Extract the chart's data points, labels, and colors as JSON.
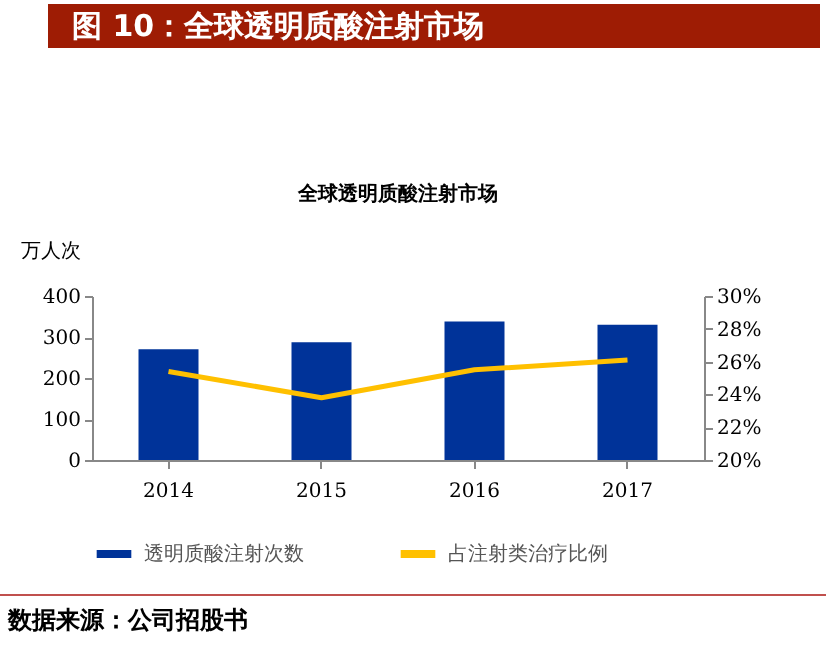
{
  "chart_data": {
    "type": "bar",
    "title": "图 10：全球透明质酸注射市场",
    "subtitle": "全球透明质酸注射市场",
    "ylabel": "万人次",
    "categories": [
      "2014",
      "2015",
      "2016",
      "2017"
    ],
    "series": [
      {
        "name": "透明质酸注射次数",
        "color": "#003399",
        "values": [
          270,
          287,
          338,
          330
        ]
      },
      {
        "name": "占注射类治疗比例",
        "type": "line",
        "axis": "y2",
        "color": "#ffc000",
        "values": [
          25.4,
          23.8,
          25.5,
          26.1
        ]
      }
    ],
    "ylim": [
      0,
      400
    ],
    "yticks": [
      0,
      100,
      200,
      300,
      400
    ],
    "y2lim": [
      20,
      30
    ],
    "y2ticks": [
      {
        "value": 20,
        "label": "20%"
      },
      {
        "value": 22,
        "label": "22%"
      },
      {
        "value": 24,
        "label": "24%"
      },
      {
        "value": 26,
        "label": "26%"
      },
      {
        "value": 28,
        "label": "28%"
      },
      {
        "value": 30,
        "label": "30%"
      }
    ],
    "legend": "bottom",
    "annotations": [
      "数据来源：公司招股书"
    ]
  }
}
